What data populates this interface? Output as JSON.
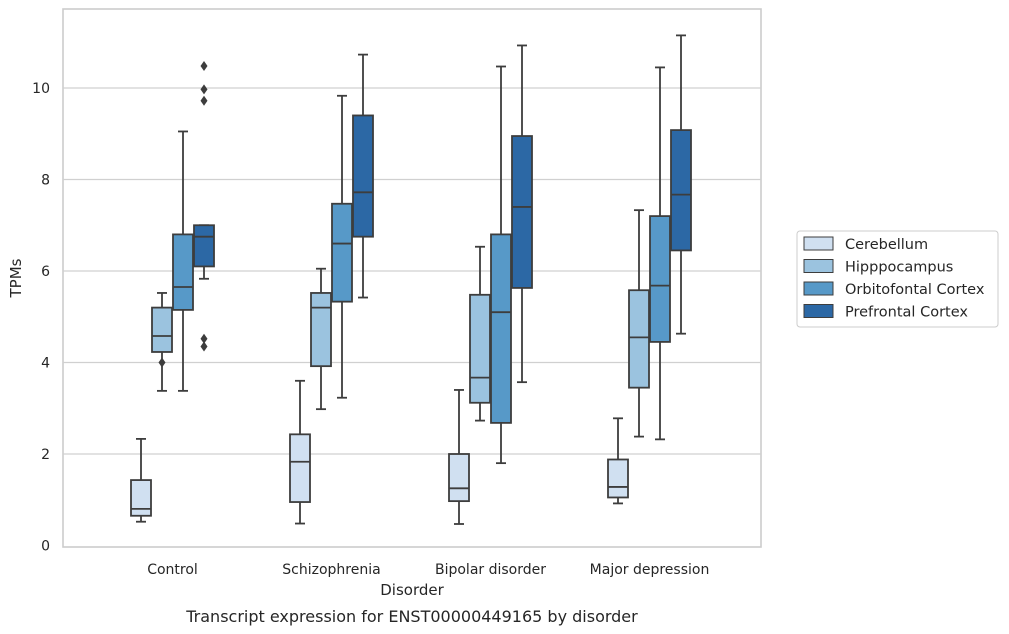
{
  "chart_data": {
    "type": "box",
    "title": "",
    "caption": "Transcript expression for ENST00000449165 by disorder",
    "xlabel": "Disorder",
    "ylabel": "TPMs",
    "ylim": [
      0,
      11.6
    ],
    "yticks": [
      0,
      2,
      4,
      6,
      8,
      10
    ],
    "grid": true,
    "legend_position": "right",
    "categories": [
      "Control",
      "Schizophrenia",
      "Bipolar disorder",
      "Major depression"
    ],
    "series": [
      {
        "name": "Cerebellum",
        "color": "#d0e0f1",
        "boxes": [
          {
            "whislo": 0.52,
            "q1": 0.65,
            "med": 0.8,
            "q3": 1.43,
            "whishi": 2.33,
            "fliers": []
          },
          {
            "whislo": 0.48,
            "q1": 0.95,
            "med": 1.83,
            "q3": 2.43,
            "whishi": 3.6,
            "fliers": []
          },
          {
            "whislo": 0.47,
            "q1": 0.97,
            "med": 1.25,
            "q3": 2.0,
            "whishi": 3.4,
            "fliers": []
          },
          {
            "whislo": 0.92,
            "q1": 1.05,
            "med": 1.28,
            "q3": 1.88,
            "whishi": 2.78,
            "fliers": []
          }
        ]
      },
      {
        "name": "Hipppocampus",
        "color": "#9bc3df",
        "boxes": [
          {
            "whislo": 3.38,
            "q1": 4.23,
            "med": 4.58,
            "q3": 5.2,
            "whishi": 5.52,
            "fliers": [
              4.0
            ]
          },
          {
            "whislo": 2.98,
            "q1": 3.92,
            "med": 5.2,
            "q3": 5.52,
            "whishi": 6.05,
            "fliers": []
          },
          {
            "whislo": 2.73,
            "q1": 3.12,
            "med": 3.67,
            "q3": 5.48,
            "whishi": 6.53,
            "fliers": []
          },
          {
            "whislo": 2.38,
            "q1": 3.45,
            "med": 4.55,
            "q3": 5.58,
            "whishi": 7.33,
            "fliers": []
          }
        ]
      },
      {
        "name": "Orbitofontal Cortex",
        "color": "#5799c8",
        "boxes": [
          {
            "whislo": 3.38,
            "q1": 5.15,
            "med": 5.65,
            "q3": 6.8,
            "whishi": 9.05,
            "fliers": []
          },
          {
            "whislo": 3.23,
            "q1": 5.33,
            "med": 6.6,
            "q3": 7.47,
            "whishi": 9.83,
            "fliers": []
          },
          {
            "whislo": 1.8,
            "q1": 2.68,
            "med": 5.1,
            "q3": 6.8,
            "whishi": 10.47,
            "fliers": []
          },
          {
            "whislo": 2.32,
            "q1": 4.45,
            "med": 5.68,
            "q3": 7.2,
            "whishi": 10.45,
            "fliers": []
          }
        ]
      },
      {
        "name": "Prefrontal Cortex",
        "color": "#2c68a5",
        "boxes": [
          {
            "whislo": 5.83,
            "q1": 6.1,
            "med": 6.75,
            "q3": 7.0,
            "whishi": 7.0,
            "fliers": [
              4.35,
              4.52,
              9.72,
              9.97,
              10.48
            ]
          },
          {
            "whislo": 5.42,
            "q1": 6.75,
            "med": 7.72,
            "q3": 9.4,
            "whishi": 10.73,
            "fliers": []
          },
          {
            "whislo": 3.57,
            "q1": 5.63,
            "med": 7.4,
            "q3": 8.95,
            "whishi": 10.93,
            "fliers": []
          },
          {
            "whislo": 4.63,
            "q1": 6.45,
            "med": 7.67,
            "q3": 9.08,
            "whishi": 11.15,
            "fliers": []
          }
        ]
      }
    ]
  }
}
